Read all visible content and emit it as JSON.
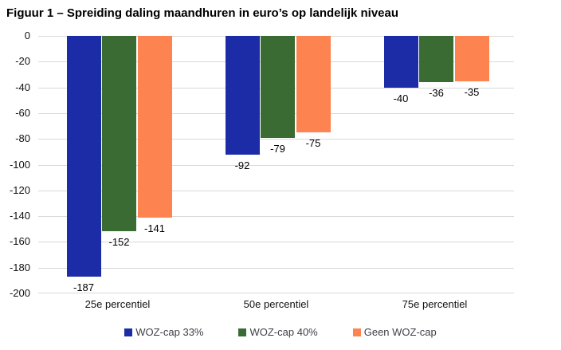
{
  "title": "Figuur 1 – Spreiding daling maandhuren in euro’s op landelijk niveau",
  "chart_data": {
    "type": "bar",
    "orientation": "vertical",
    "title": "Figuur 1 – Spreiding daling maandhuren in euro’s op landelijk niveau",
    "categories": [
      "25e percentiel",
      "50e percentiel",
      "75e percentiel"
    ],
    "series": [
      {
        "name": "WOZ-cap 33%",
        "color": "#1b2ca6",
        "values": [
          -187,
          -92,
          -40
        ]
      },
      {
        "name": "WOZ-cap 40%",
        "color": "#3a6b33",
        "values": [
          -152,
          -79,
          -36
        ]
      },
      {
        "name": "Geen WOZ-cap",
        "color": "#fd8451",
        "values": [
          -141,
          -75,
          -35
        ]
      }
    ],
    "ylim": [
      -200,
      0
    ],
    "yticks": [
      0,
      -20,
      -40,
      -60,
      -80,
      -100,
      -120,
      -140,
      -160,
      -180,
      -200
    ],
    "xlabel": "",
    "ylabel": "",
    "grid": true,
    "gridline_color": "#d9d9d9",
    "data_labels": true,
    "data_label_color": "#000000",
    "legend_position": "bottom",
    "legend_text_color": "#3f3f46",
    "background": "#ffffff"
  }
}
